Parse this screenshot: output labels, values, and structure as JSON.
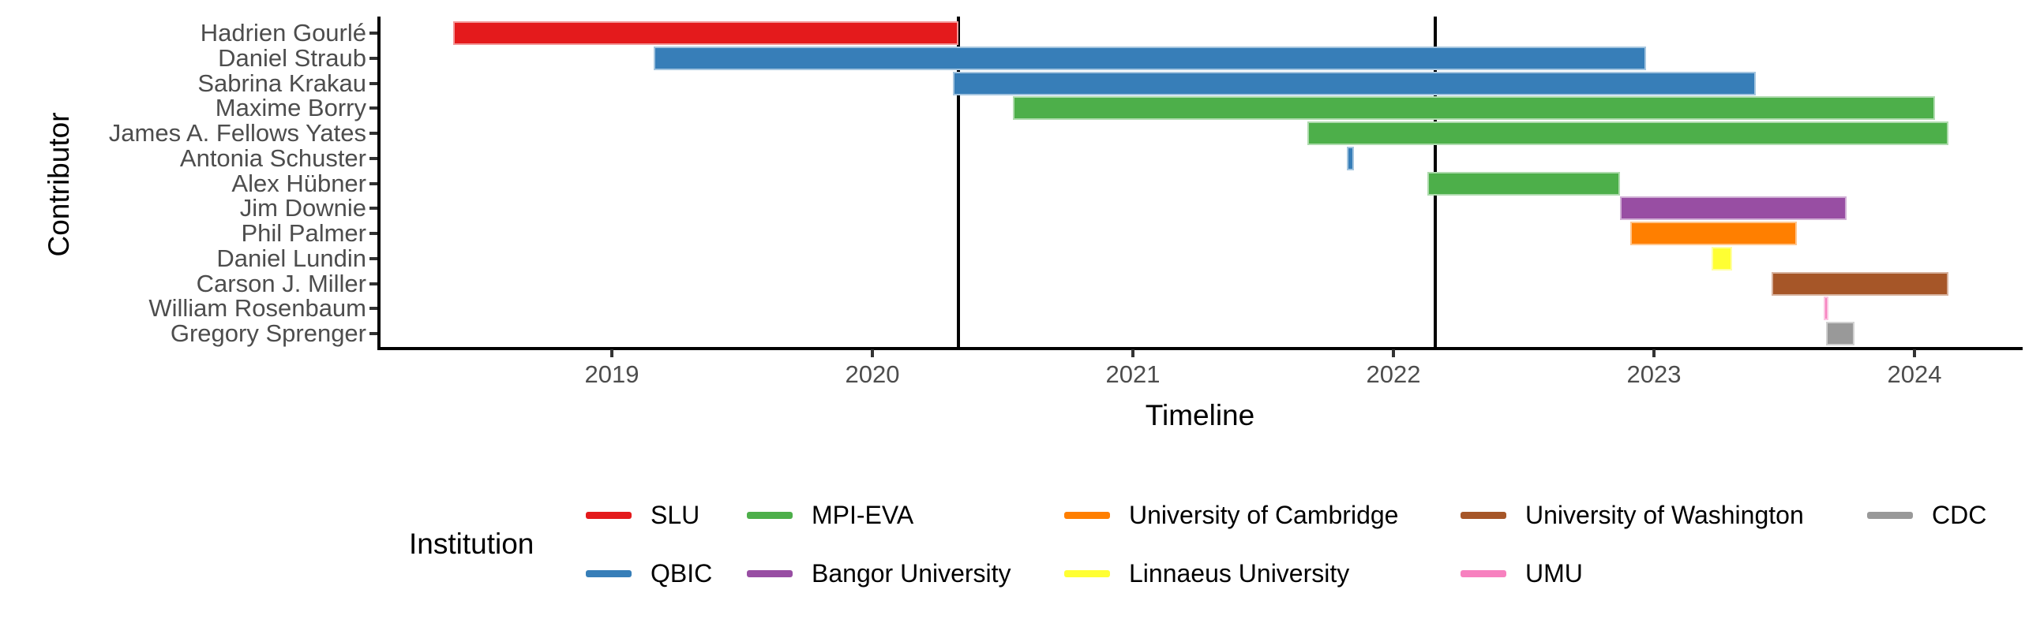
{
  "chart_data": {
    "type": "gantt",
    "title": "",
    "xlabel": "Timeline",
    "ylabel": "Contributor",
    "legend_title": "Institution",
    "x_ticks": [
      2019,
      2020,
      2021,
      2022,
      2023,
      2024
    ],
    "x_range": [
      2018.1,
      2024.42
    ],
    "grid": false,
    "legend_position": "bottom",
    "institutions": [
      {
        "name": "SLU",
        "color": "#E41A1C"
      },
      {
        "name": "QBIC",
        "color": "#377EB8"
      },
      {
        "name": "MPI-EVA",
        "color": "#4DAF4A"
      },
      {
        "name": "Bangor University",
        "color": "#984EA3"
      },
      {
        "name": "University of Cambridge",
        "color": "#FF7F00"
      },
      {
        "name": "Linnaeus University",
        "color": "#FFFF33"
      },
      {
        "name": "University of Washington",
        "color": "#A65628"
      },
      {
        "name": "UMU",
        "color": "#F781BF"
      },
      {
        "name": "CDC",
        "color": "#999999"
      }
    ],
    "contributors": [
      {
        "name": "Hadrien Gourlé",
        "institution": "SLU",
        "start": 2018.39,
        "end": 2020.33
      },
      {
        "name": "Daniel Straub",
        "institution": "QBIC",
        "start": 2019.16,
        "end": 2022.97
      },
      {
        "name": "Sabrina Krakau",
        "institution": "QBIC",
        "start": 2020.31,
        "end": 2023.39
      },
      {
        "name": "Maxime Borry",
        "institution": "MPI-EVA",
        "start": 2020.54,
        "end": 2024.08
      },
      {
        "name": "James A. Fellows Yates",
        "institution": "MPI-EVA",
        "start": 2021.67,
        "end": 2024.13
      },
      {
        "name": "Antonia Schuster",
        "institution": "QBIC",
        "start": 2021.82,
        "end": 2021.85
      },
      {
        "name": "Alex Hübner",
        "institution": "MPI-EVA",
        "start": 2022.13,
        "end": 2022.87
      },
      {
        "name": "Jim Downie",
        "institution": "Bangor University",
        "start": 2022.87,
        "end": 2023.74
      },
      {
        "name": "Phil Palmer",
        "institution": "University of Cambridge",
        "start": 2022.91,
        "end": 2023.55
      },
      {
        "name": "Daniel Lundin",
        "institution": "Linnaeus University",
        "start": 2023.22,
        "end": 2023.3
      },
      {
        "name": "Carson J. Miller",
        "institution": "University of Washington",
        "start": 2023.45,
        "end": 2024.13
      },
      {
        "name": "William Rosenbaum",
        "institution": "UMU",
        "start": 2023.65,
        "end": 2023.67
      },
      {
        "name": "Gregory Sprenger",
        "institution": "CDC",
        "start": 2023.66,
        "end": 2023.77
      }
    ],
    "event_vlines": [
      2020.33,
      2022.16
    ]
  }
}
